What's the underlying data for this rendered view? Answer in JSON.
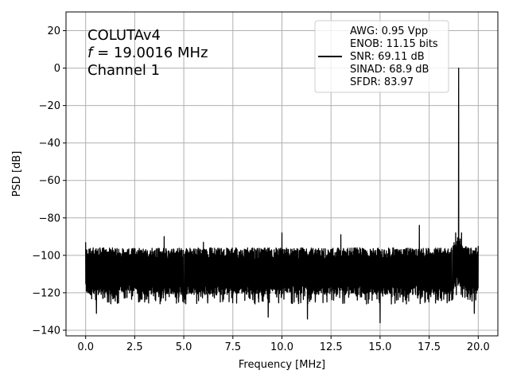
{
  "chart_data": {
    "type": "line",
    "xlabel": "Frequency [MHz]",
    "ylabel": "PSD [dB]",
    "xlim": [
      -1.0,
      21.0
    ],
    "ylim": [
      -143.0,
      30.0
    ],
    "x_ticks": [
      0.0,
      2.5,
      5.0,
      7.5,
      10.0,
      12.5,
      15.0,
      17.5,
      20.0
    ],
    "x_tick_labels": [
      "0.0",
      "2.5",
      "5.0",
      "7.5",
      "10.0",
      "12.5",
      "15.0",
      "17.5",
      "20.0"
    ],
    "y_ticks": [
      20,
      0,
      -20,
      -40,
      -60,
      -80,
      -100,
      -120,
      -140
    ],
    "y_tick_labels": [
      "20",
      "0",
      "−20",
      "−40",
      "−60",
      "−80",
      "−100",
      "−120",
      "−140"
    ],
    "grid": true,
    "line_color": "#000000",
    "annotation": {
      "line1": "COLUTAv4",
      "line2_italic": "f",
      "line2_rest": " = 19.0016 MHz",
      "line3": "Channel 1"
    },
    "legend": {
      "placement": "top-right",
      "lines": [
        "AWG: 0.95 Vpp",
        "ENOB: 11.15 bits",
        "SNR: 69.11 dB",
        "SINAD: 68.9 dB",
        "SFDR: 83.97"
      ]
    },
    "series": [
      {
        "noise_floor_db": -108,
        "noise_band_db": [
          -118,
          -99
        ],
        "peaks": [
          {
            "x": 0.0,
            "y": -93
          },
          {
            "x": 0.55,
            "y": -131
          },
          {
            "x": 4.0,
            "y": -90
          },
          {
            "x": 6.0,
            "y": -93
          },
          {
            "x": 9.3,
            "y": -133
          },
          {
            "x": 10.0,
            "y": -88
          },
          {
            "x": 11.3,
            "y": -134
          },
          {
            "x": 13.0,
            "y": -89
          },
          {
            "x": 15.0,
            "y": -136
          },
          {
            "x": 17.0,
            "y": -84
          },
          {
            "x": 18.85,
            "y": -88
          },
          {
            "x": 19.0016,
            "y": 0
          },
          {
            "x": 19.15,
            "y": -88
          },
          {
            "x": 19.8,
            "y": -131
          },
          {
            "x": 20.0,
            "y": -95
          }
        ]
      }
    ]
  }
}
